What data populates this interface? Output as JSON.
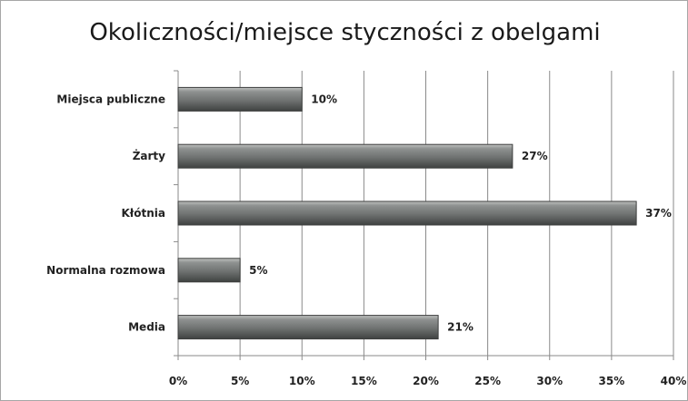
{
  "chart_data": {
    "type": "bar",
    "orientation": "horizontal",
    "title": "Okoliczności/miejsce styczności z obelgami",
    "categories": [
      "Miejsca publiczne",
      "Żarty",
      "Kłótnia",
      "Normalna rozmowa",
      "Media"
    ],
    "values": [
      10,
      27,
      37,
      5,
      21
    ],
    "value_labels": [
      "10%",
      "27%",
      "37%",
      "5%",
      "21%"
    ],
    "xlim": [
      0,
      40
    ],
    "x_ticks": [
      0,
      5,
      10,
      15,
      20,
      25,
      30,
      35,
      40
    ],
    "x_tick_labels": [
      "0%",
      "5%",
      "10%",
      "15%",
      "20%",
      "25%",
      "30%",
      "35%",
      "40%"
    ],
    "grid": "vertical",
    "legend": "none",
    "bar_color": "#6f7271"
  }
}
